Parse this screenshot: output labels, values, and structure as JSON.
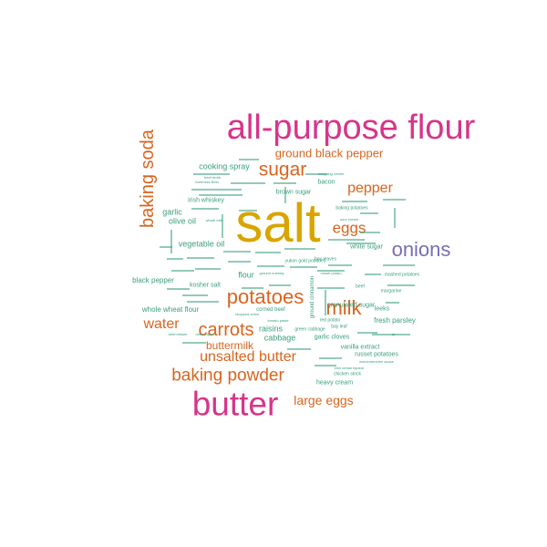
{
  "colors": {
    "magenta": "#d6358a",
    "gold": "#d9a400",
    "orange": "#d9641f",
    "purple": "#7570b3",
    "green": "#3aa07a"
  },
  "words": [
    {
      "text": "salt",
      "color": "gold"
    },
    {
      "text": "all-purpose flour",
      "color": "magenta"
    },
    {
      "text": "butter",
      "color": "magenta"
    },
    {
      "text": "onions",
      "color": "purple"
    },
    {
      "text": "baking soda",
      "color": "orange"
    },
    {
      "text": "potatoes",
      "color": "orange"
    },
    {
      "text": "sugar",
      "color": "orange"
    },
    {
      "text": "milk",
      "color": "orange"
    },
    {
      "text": "carrots",
      "color": "orange"
    },
    {
      "text": "baking powder",
      "color": "orange"
    },
    {
      "text": "unsalted butter",
      "color": "orange"
    },
    {
      "text": "water",
      "color": "orange"
    },
    {
      "text": "eggs",
      "color": "orange"
    },
    {
      "text": "pepper",
      "color": "orange"
    },
    {
      "text": "large eggs",
      "color": "orange"
    },
    {
      "text": "ground black pepper",
      "color": "orange"
    },
    {
      "text": "buttermilk",
      "color": "orange"
    },
    {
      "text": "cooking spray",
      "color": "green"
    },
    {
      "text": "olive oil",
      "color": "green"
    },
    {
      "text": "garlic",
      "color": "green"
    },
    {
      "text": "vegetable oil",
      "color": "green"
    },
    {
      "text": "irish whiskey",
      "color": "green"
    },
    {
      "text": "black pepper",
      "color": "green"
    },
    {
      "text": "kosher salt",
      "color": "green"
    },
    {
      "text": "whole wheat flour",
      "color": "green"
    },
    {
      "text": "flour",
      "color": "green"
    },
    {
      "text": "raisins",
      "color": "green"
    },
    {
      "text": "cabbage",
      "color": "green"
    },
    {
      "text": "corned beef",
      "color": "green"
    },
    {
      "text": "ground cinnamon",
      "color": "green"
    },
    {
      "text": "white sugar",
      "color": "green"
    },
    {
      "text": "bacon",
      "color": "green"
    },
    {
      "text": "brown sugar",
      "color": "green"
    },
    {
      "text": "granulated sugar",
      "color": "green"
    },
    {
      "text": "leeks",
      "color": "green"
    },
    {
      "text": "fresh parsley",
      "color": "green"
    },
    {
      "text": "garlic cloves",
      "color": "green"
    },
    {
      "text": "vanilla extract",
      "color": "green"
    },
    {
      "text": "russet potatoes",
      "color": "green"
    },
    {
      "text": "heavy cream",
      "color": "green"
    },
    {
      "text": "sour cream",
      "color": "green"
    },
    {
      "text": "whipping cream",
      "color": "green"
    },
    {
      "text": "baking potatoes",
      "color": "green"
    },
    {
      "text": "margarine",
      "color": "green"
    },
    {
      "text": "mashed potatoes",
      "color": "green"
    },
    {
      "text": "chicken stock",
      "color": "green"
    },
    {
      "text": "bay leaf",
      "color": "green"
    },
    {
      "text": "bay leaves",
      "color": "green"
    },
    {
      "text": "yukon gold potatoes",
      "color": "green"
    },
    {
      "text": "green cabbage",
      "color": "green"
    },
    {
      "text": "red potato",
      "color": "green"
    },
    {
      "text": "beef",
      "color": "green"
    },
    {
      "text": "Guinness Beer",
      "color": "green"
    },
    {
      "text": "beef broth",
      "color": "green"
    },
    {
      "text": "ground nutmeg",
      "color": "green"
    },
    {
      "text": "russet potato",
      "color": "green"
    },
    {
      "text": "worcestershire sauce",
      "color": "green"
    },
    {
      "text": "dried thyme",
      "color": "green"
    },
    {
      "text": "whole milk",
      "color": "green"
    },
    {
      "text": "beef brisket",
      "color": "green"
    },
    {
      "text": "irish cream liqueur",
      "color": "green"
    },
    {
      "text": "chopped onion",
      "color": "green"
    },
    {
      "text": "tomato paste",
      "color": "green"
    }
  ]
}
